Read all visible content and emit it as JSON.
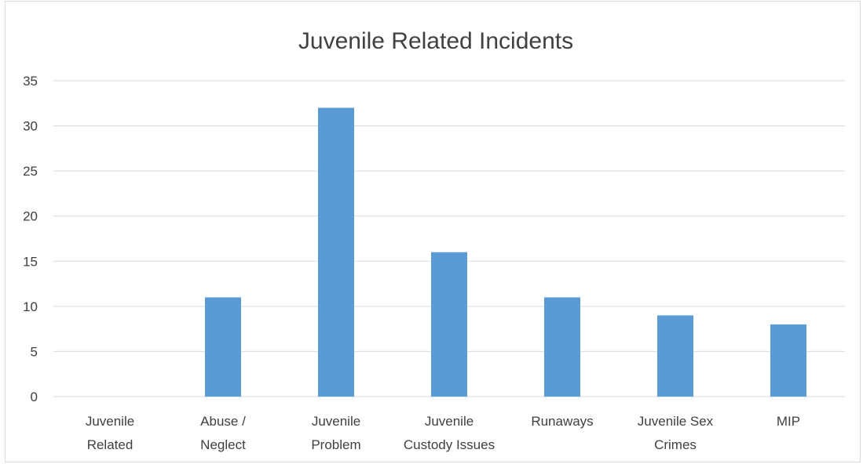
{
  "chart_data": {
    "type": "bar",
    "title": "Juvenile Related Incidents",
    "xlabel": "",
    "ylabel": "",
    "categories": [
      [
        "Juvenile",
        "Related"
      ],
      [
        "Abuse /",
        "Neglect"
      ],
      [
        "Juvenile",
        "Problem"
      ],
      [
        "Juvenile",
        "Custody Issues"
      ],
      [
        "Runaways"
      ],
      [
        "Juvenile Sex",
        "Crimes"
      ],
      [
        "MIP"
      ]
    ],
    "values": [
      0,
      11,
      32,
      16,
      11,
      9,
      8
    ],
    "ylim": [
      0,
      35
    ],
    "yticks": [
      0,
      5,
      10,
      15,
      20,
      25,
      30,
      35
    ],
    "grid": true,
    "legend": "none",
    "colors": {
      "bar": "#5b9bd5",
      "grid": "#d9d9d9",
      "text": "#404040"
    }
  }
}
